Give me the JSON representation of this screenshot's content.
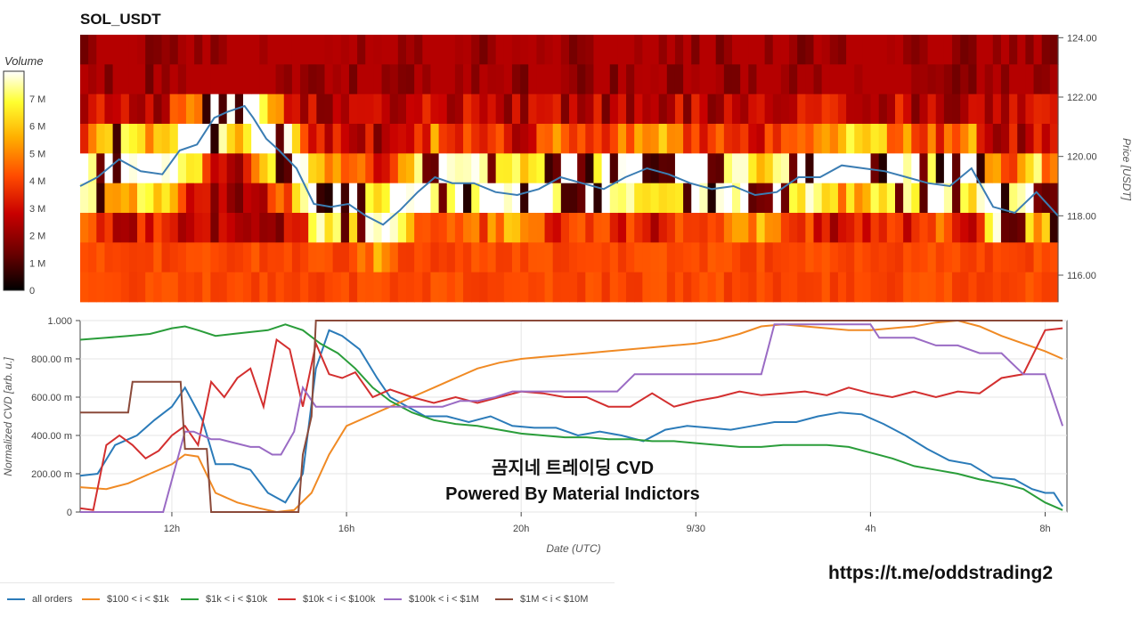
{
  "header": {
    "title": "SOL_USDT",
    "volume_label": "Volume"
  },
  "colors": {
    "heatmap": [
      "#000000",
      "#6b0000",
      "#c80000",
      "#ff4a00",
      "#ffb000",
      "#ffff30",
      "#ffffff"
    ],
    "price_line": "#3b7db3"
  },
  "watermark": {
    "line1": "곰지네 트레이딩 CVD",
    "line2": "Powered By Material Indictors"
  },
  "footer": {
    "url": "https://t.me/oddstrading2"
  },
  "chart_data": [
    {
      "type": "heatmap",
      "title": "SOL_USDT",
      "colorbar_label": "Volume",
      "colorbar_ticks": [
        "0",
        "1 M",
        "2 M",
        "3 M",
        "4 M",
        "5 M",
        "6 M",
        "7 M"
      ],
      "colorbar_range": [
        0,
        8
      ],
      "ylabel": "Price [USDT]",
      "ylim": [
        115.1,
        124.1
      ],
      "y_ticks": [
        "116.00",
        "118.00",
        "120.00",
        "122.00",
        "124.00"
      ],
      "x_range_hours": [
        9.9,
        32.5
      ],
      "price_series": {
        "x": [
          9.9,
          10.3,
          10.8,
          11.3,
          11.8,
          12.2,
          12.6,
          13.0,
          13.3,
          13.7,
          13.9,
          14.2,
          14.5,
          14.9,
          15.3,
          15.7,
          16.1,
          16.5,
          16.9,
          17.3,
          17.7,
          18.1,
          18.5,
          19.0,
          19.5,
          20.0,
          20.5,
          21.0,
          21.5,
          22.0,
          22.5,
          23.0,
          23.5,
          24.0,
          24.5,
          25.0,
          25.5,
          26.0,
          26.5,
          27.0,
          27.5,
          28.0,
          28.5,
          29.0,
          29.5,
          30.0,
          30.5,
          31.0,
          31.5,
          32.0,
          32.5
        ],
        "y": [
          119.0,
          119.3,
          119.9,
          119.5,
          119.4,
          120.2,
          120.4,
          121.3,
          121.5,
          121.7,
          121.3,
          120.6,
          120.2,
          119.6,
          118.4,
          118.3,
          118.4,
          118.0,
          117.7,
          118.2,
          118.8,
          119.3,
          119.1,
          119.1,
          118.8,
          118.7,
          118.9,
          119.3,
          119.1,
          118.9,
          119.3,
          119.6,
          119.4,
          119.1,
          118.9,
          119.0,
          118.7,
          118.8,
          119.3,
          119.3,
          119.7,
          119.6,
          119.5,
          119.3,
          119.1,
          119.0,
          119.6,
          118.3,
          118.1,
          118.8,
          118.0
        ]
      }
    },
    {
      "type": "line",
      "xlabel": "Date (UTC)",
      "ylabel": "Normalized CVD [arb. u.]",
      "ylim": [
        0,
        1
      ],
      "y_ticks": [
        "0",
        "200.00 m",
        "400.00 m",
        "600.00 m",
        "800.00 m",
        "1.000"
      ],
      "x_ticks": [
        "12h",
        "16h",
        "20h",
        "9/30",
        "4h",
        "8h"
      ],
      "x_tick_hours": [
        12,
        16,
        20,
        24,
        28,
        32
      ],
      "x_range_hours": [
        9.9,
        32.5
      ],
      "series": [
        {
          "name": "all orders",
          "color": "#2b7bb9",
          "x": [
            9.9,
            10.3,
            10.7,
            11.2,
            11.6,
            12.0,
            12.3,
            12.7,
            13.0,
            13.4,
            13.8,
            14.2,
            14.6,
            15.0,
            15.3,
            15.6,
            15.9,
            16.3,
            16.7,
            17.0,
            17.4,
            17.8,
            18.3,
            18.8,
            19.3,
            19.8,
            20.3,
            20.8,
            21.3,
            21.8,
            22.3,
            22.8,
            23.3,
            23.8,
            24.3,
            24.8,
            25.3,
            25.8,
            26.3,
            26.8,
            27.3,
            27.8,
            28.3,
            28.8,
            29.3,
            29.8,
            30.3,
            30.8,
            31.3,
            31.7,
            32.0,
            32.2,
            32.4
          ],
          "y": [
            0.19,
            0.2,
            0.35,
            0.4,
            0.48,
            0.55,
            0.65,
            0.48,
            0.25,
            0.25,
            0.22,
            0.1,
            0.05,
            0.2,
            0.75,
            0.95,
            0.92,
            0.85,
            0.7,
            0.6,
            0.55,
            0.5,
            0.5,
            0.47,
            0.5,
            0.45,
            0.44,
            0.44,
            0.4,
            0.42,
            0.4,
            0.37,
            0.43,
            0.45,
            0.44,
            0.43,
            0.45,
            0.47,
            0.47,
            0.5,
            0.52,
            0.51,
            0.46,
            0.4,
            0.33,
            0.27,
            0.25,
            0.18,
            0.17,
            0.12,
            0.1,
            0.1,
            0.03
          ]
        },
        {
          "name": "$100 < i < $1k",
          "color": "#f08a24",
          "x": [
            9.9,
            10.5,
            11.0,
            11.5,
            12.0,
            12.3,
            12.6,
            13.0,
            13.5,
            14.0,
            14.4,
            14.8,
            15.2,
            15.6,
            16.0,
            16.5,
            17.0,
            17.5,
            18.0,
            18.5,
            19.0,
            19.5,
            20.0,
            20.5,
            21.0,
            21.5,
            22.0,
            22.5,
            23.0,
            23.5,
            24.0,
            24.5,
            25.0,
            25.5,
            26.0,
            26.5,
            27.0,
            27.5,
            28.0,
            28.5,
            29.0,
            29.5,
            30.0,
            30.5,
            31.0,
            31.5,
            32.0,
            32.4
          ],
          "y": [
            0.13,
            0.12,
            0.15,
            0.2,
            0.25,
            0.3,
            0.29,
            0.1,
            0.05,
            0.02,
            0.0,
            0.01,
            0.1,
            0.3,
            0.45,
            0.5,
            0.55,
            0.6,
            0.65,
            0.7,
            0.75,
            0.78,
            0.8,
            0.81,
            0.82,
            0.83,
            0.84,
            0.85,
            0.86,
            0.87,
            0.88,
            0.9,
            0.93,
            0.97,
            0.98,
            0.97,
            0.96,
            0.95,
            0.95,
            0.96,
            0.97,
            0.99,
            1.0,
            0.97,
            0.92,
            0.88,
            0.84,
            0.8
          ]
        },
        {
          "name": "$1k < i < $10k",
          "color": "#2a9d3a",
          "x": [
            9.9,
            10.5,
            11.0,
            11.5,
            12.0,
            12.3,
            12.6,
            13.0,
            13.4,
            13.8,
            14.2,
            14.6,
            15.0,
            15.4,
            15.8,
            16.2,
            16.6,
            17.0,
            17.5,
            18.0,
            18.5,
            19.0,
            19.5,
            20.0,
            20.5,
            21.0,
            21.5,
            22.0,
            22.5,
            23.0,
            23.5,
            24.0,
            24.5,
            25.0,
            25.5,
            26.0,
            26.5,
            27.0,
            27.5,
            28.0,
            28.5,
            29.0,
            29.5,
            30.0,
            30.5,
            31.0,
            31.5,
            32.0,
            32.4
          ],
          "y": [
            0.9,
            0.91,
            0.92,
            0.93,
            0.96,
            0.97,
            0.95,
            0.92,
            0.93,
            0.94,
            0.95,
            0.98,
            0.95,
            0.88,
            0.83,
            0.75,
            0.65,
            0.58,
            0.52,
            0.48,
            0.46,
            0.45,
            0.43,
            0.41,
            0.4,
            0.39,
            0.39,
            0.38,
            0.38,
            0.37,
            0.37,
            0.36,
            0.35,
            0.34,
            0.34,
            0.35,
            0.35,
            0.35,
            0.34,
            0.31,
            0.28,
            0.24,
            0.22,
            0.2,
            0.17,
            0.15,
            0.12,
            0.05,
            0.01
          ]
        },
        {
          "name": "$10k < i < $100k",
          "color": "#d32f2f",
          "x": [
            9.9,
            10.2,
            10.5,
            10.8,
            11.1,
            11.4,
            11.7,
            12.0,
            12.3,
            12.6,
            12.9,
            13.2,
            13.5,
            13.8,
            14.1,
            14.4,
            14.7,
            15.0,
            15.3,
            15.6,
            15.9,
            16.2,
            16.6,
            17.0,
            17.5,
            18.0,
            18.5,
            19.0,
            19.5,
            20.0,
            20.5,
            21.0,
            21.5,
            22.0,
            22.5,
            23.0,
            23.5,
            24.0,
            24.5,
            25.0,
            25.5,
            26.0,
            26.5,
            27.0,
            27.5,
            28.0,
            28.5,
            29.0,
            29.5,
            30.0,
            30.5,
            31.0,
            31.5,
            32.0,
            32.4
          ],
          "y": [
            0.02,
            0.01,
            0.35,
            0.4,
            0.35,
            0.28,
            0.32,
            0.4,
            0.45,
            0.35,
            0.68,
            0.6,
            0.7,
            0.75,
            0.55,
            0.9,
            0.85,
            0.55,
            0.88,
            0.72,
            0.7,
            0.73,
            0.6,
            0.64,
            0.6,
            0.57,
            0.6,
            0.57,
            0.6,
            0.63,
            0.62,
            0.6,
            0.6,
            0.55,
            0.55,
            0.62,
            0.55,
            0.58,
            0.6,
            0.63,
            0.61,
            0.62,
            0.63,
            0.61,
            0.65,
            0.62,
            0.6,
            0.63,
            0.6,
            0.63,
            0.62,
            0.7,
            0.72,
            0.95,
            0.96
          ]
        },
        {
          "name": "$100k < i < $1M",
          "color": "#9a6bc4",
          "x": [
            9.9,
            11.7,
            11.8,
            12.3,
            12.5,
            12.9,
            13.1,
            13.8,
            14.0,
            14.3,
            14.5,
            14.8,
            15.0,
            15.3,
            15.5,
            16.0,
            16.5,
            17.0,
            17.4,
            17.8,
            18.2,
            18.6,
            19.0,
            19.4,
            19.8,
            20.2,
            21.0,
            21.8,
            22.2,
            22.6,
            23.0,
            23.5,
            24.0,
            24.5,
            25.0,
            25.5,
            25.8,
            26.5,
            27.0,
            27.5,
            28.0,
            28.2,
            28.5,
            29.0,
            29.5,
            30.0,
            30.5,
            31.0,
            31.5,
            32.0,
            32.4
          ],
          "y": [
            0.0,
            0.0,
            0.0,
            0.42,
            0.42,
            0.38,
            0.38,
            0.34,
            0.34,
            0.3,
            0.3,
            0.42,
            0.65,
            0.55,
            0.55,
            0.55,
            0.55,
            0.55,
            0.55,
            0.55,
            0.55,
            0.58,
            0.58,
            0.6,
            0.63,
            0.63,
            0.63,
            0.63,
            0.63,
            0.72,
            0.72,
            0.72,
            0.72,
            0.72,
            0.72,
            0.72,
            0.98,
            0.98,
            0.98,
            0.98,
            0.98,
            0.91,
            0.91,
            0.91,
            0.87,
            0.87,
            0.83,
            0.83,
            0.72,
            0.72,
            0.45
          ]
        },
        {
          "name": "$1M < i < $10M",
          "color": "#8b4a3a",
          "x": [
            9.9,
            11.0,
            11.1,
            12.2,
            12.3,
            12.8,
            12.9,
            14.9,
            15.0,
            15.2,
            15.3,
            32.4
          ],
          "y": [
            0.52,
            0.52,
            0.68,
            0.68,
            0.33,
            0.33,
            0.0,
            0.0,
            0.3,
            0.5,
            1.0,
            1.0
          ]
        }
      ]
    }
  ]
}
